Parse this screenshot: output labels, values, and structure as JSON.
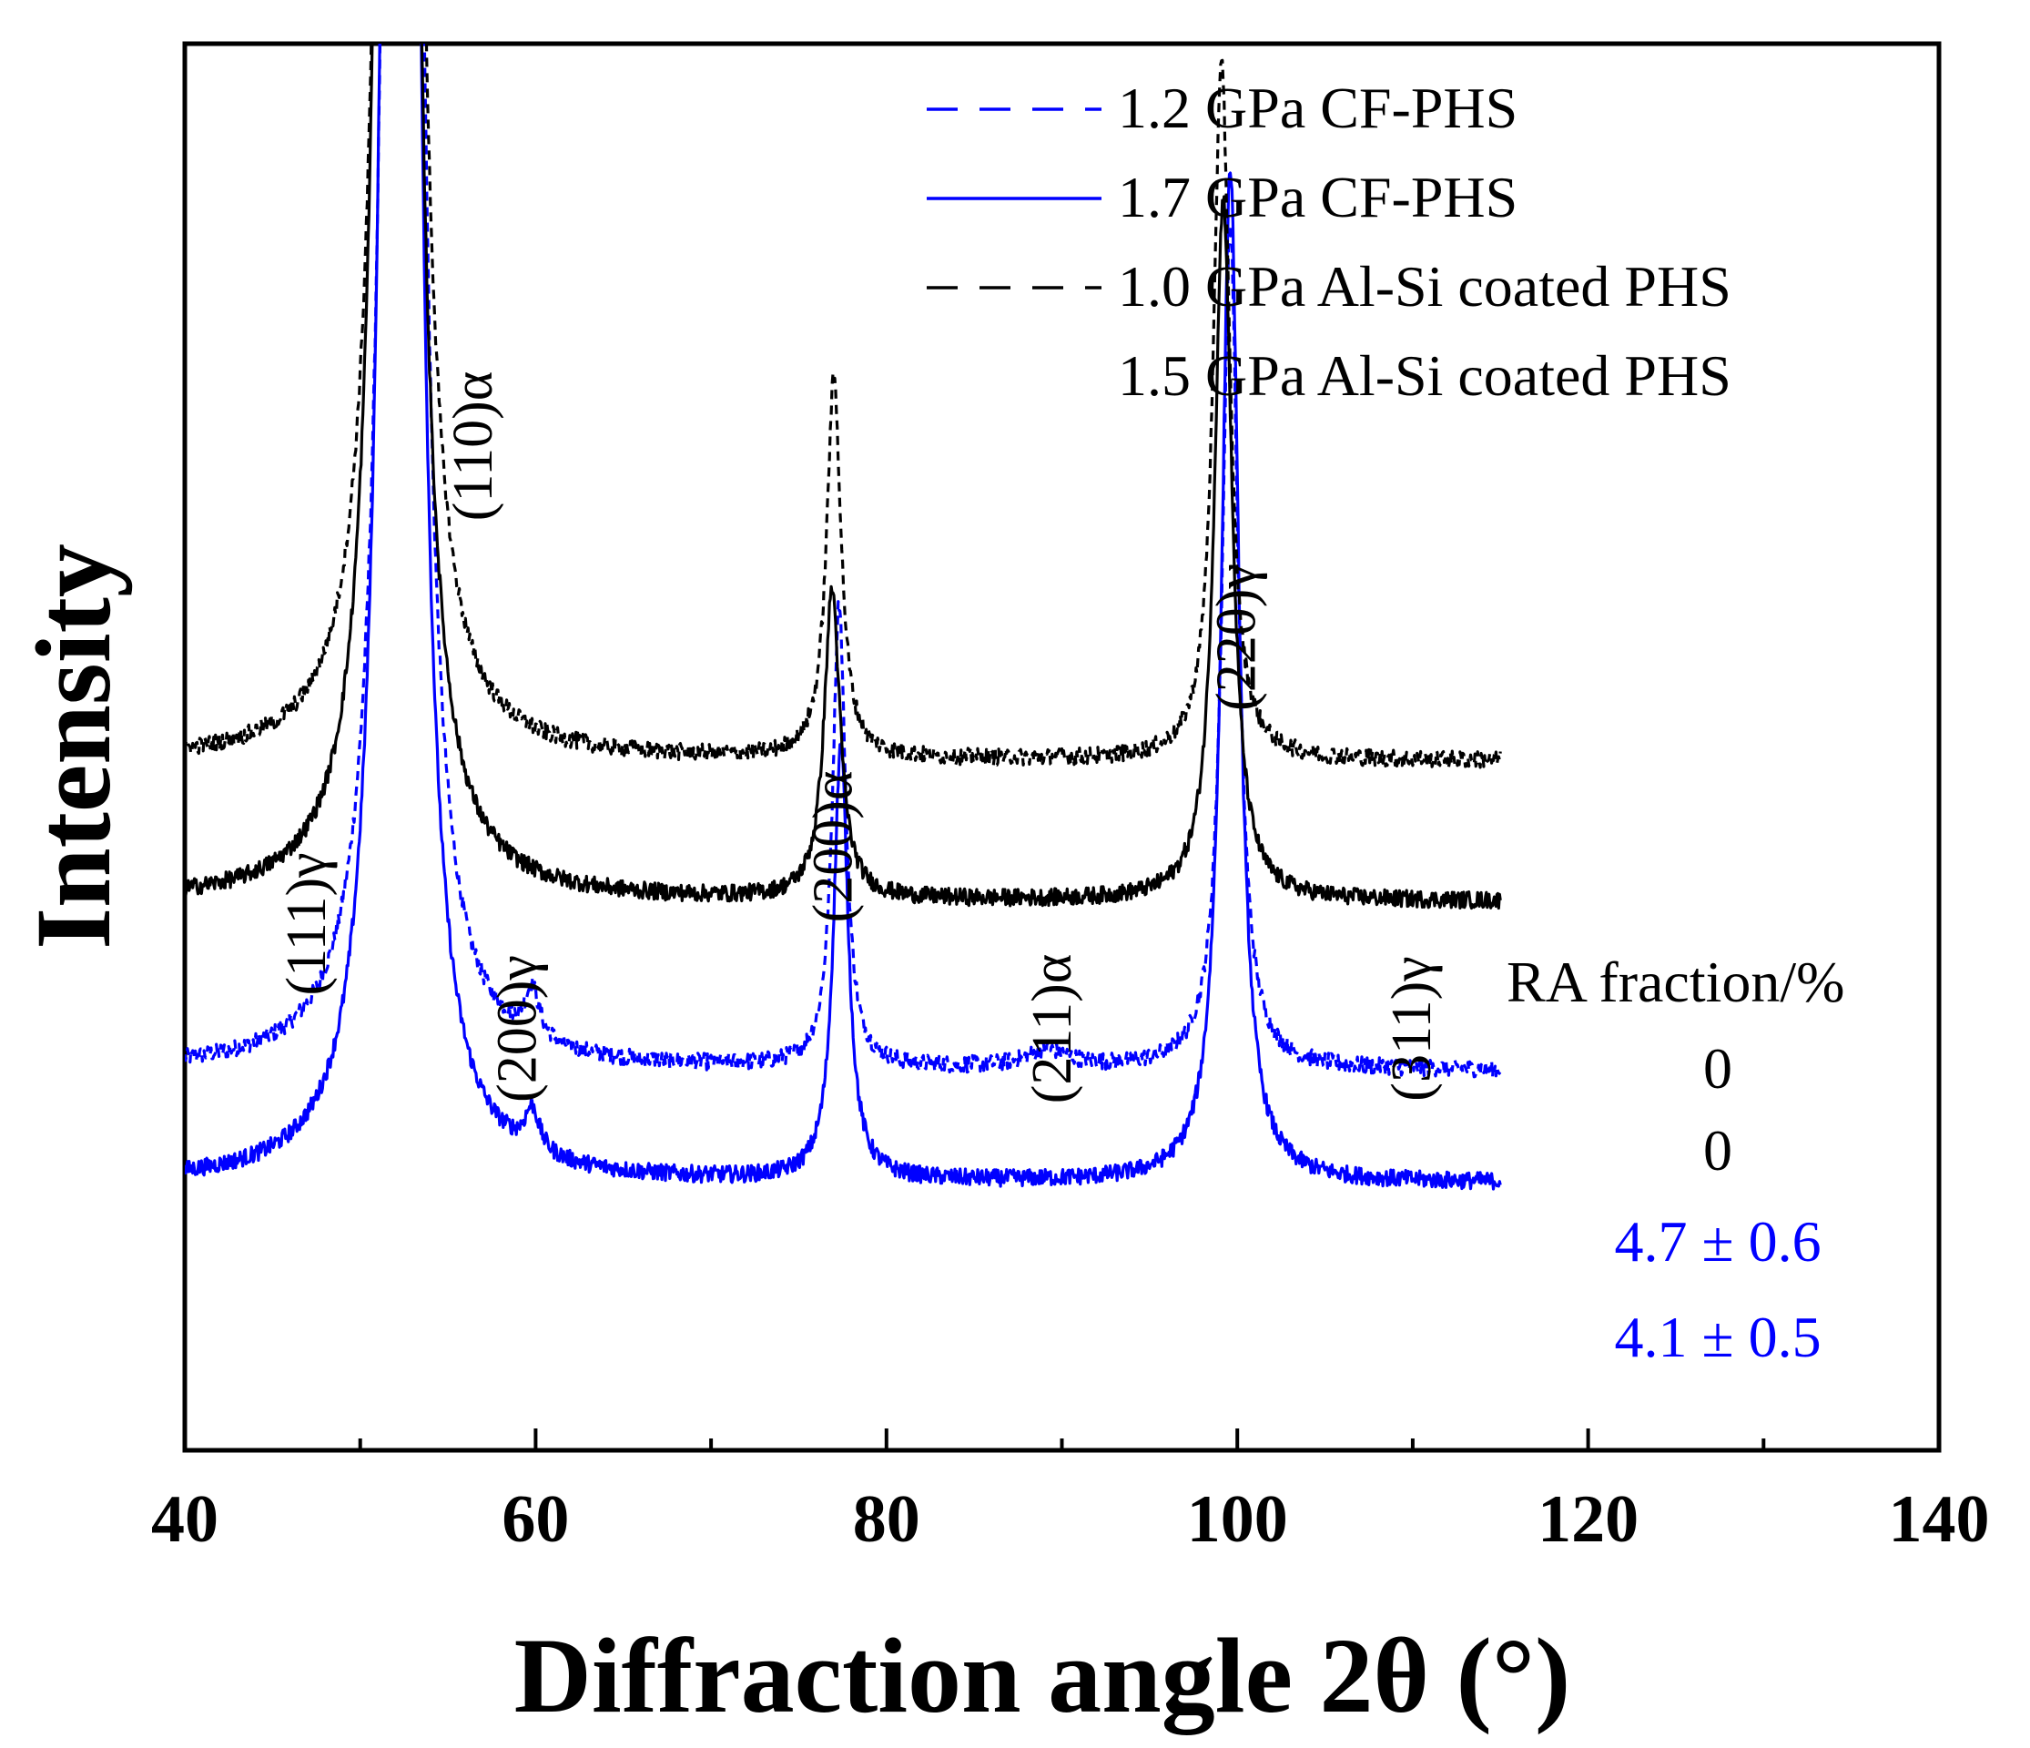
{
  "chart_data": {
    "type": "line",
    "title": "",
    "xlabel": "Diffraction angle 2θ (°)",
    "ylabel": "Intensity",
    "xlim": [
      40,
      140
    ],
    "x_ticks": [
      40,
      60,
      80,
      100,
      120,
      140
    ],
    "x_tick_labels": [
      "40",
      "60",
      "80",
      "100",
      "120",
      "140"
    ],
    "x_minor_ticks": [
      50,
      70,
      90,
      110,
      130
    ],
    "y_ticks_visible": false,
    "grid": false,
    "legend_position": "top-right",
    "series": [
      {
        "name": "1.2 GPa CF-PHS",
        "color": "#0000ff",
        "style": "dashed",
        "x_range": [
          40,
          115
        ],
        "baseline": 0.27,
        "ra_fraction": "4.7 ± 0.6",
        "peaks": [
          {
            "x": 52.4,
            "height": 4.0,
            "width": 0.6
          },
          {
            "x": 59.8,
            "height": 0.035,
            "width": 0.5
          },
          {
            "x": 77.3,
            "height": 0.33,
            "width": 0.45
          },
          {
            "x": 89.2,
            "height": 0.012,
            "width": 1.5
          },
          {
            "x": 99.6,
            "height": 0.6,
            "width": 0.55
          }
        ]
      },
      {
        "name": "1.7 GPa CF-PHS",
        "color": "#0000ff",
        "style": "solid",
        "x_range": [
          40,
          115
        ],
        "baseline": 0.19,
        "ra_fraction": "4.1 ± 0.5",
        "peaks": [
          {
            "x": 52.3,
            "height": 4.0,
            "width": 0.6
          },
          {
            "x": 59.8,
            "height": 0.03,
            "width": 0.5
          },
          {
            "x": 77.4,
            "height": 0.31,
            "width": 0.5
          },
          {
            "x": 99.6,
            "height": 0.72,
            "width": 0.6
          }
        ]
      },
      {
        "name": "1.0 GPa Al-Si coated PHS",
        "color": "#000000",
        "style": "dashed",
        "x_range": [
          40,
          115
        ],
        "baseline": 0.49,
        "ra_fraction": "0",
        "peaks": [
          {
            "x": 52.2,
            "height": 4.0,
            "width": 0.6
          },
          {
            "x": 77.0,
            "height": 0.27,
            "width": 0.5
          },
          {
            "x": 99.1,
            "height": 0.5,
            "width": 0.55
          }
        ]
      },
      {
        "name": "1.5 GPa Al-Si coated PHS",
        "color": "#000000",
        "style": "solid",
        "x_range": [
          40,
          115
        ],
        "baseline": 0.39,
        "ra_fraction": "0",
        "peaks": [
          {
            "x": 52.1,
            "height": 4.0,
            "width": 0.6
          },
          {
            "x": 76.9,
            "height": 0.22,
            "width": 0.55
          },
          {
            "x": 99.2,
            "height": 0.5,
            "width": 0.6
          }
        ]
      }
    ],
    "annotations": [
      {
        "text": "(111)γ",
        "x": 48.0
      },
      {
        "text": "(110)α",
        "x": 57.5
      },
      {
        "text": "(200)γ",
        "x": 60.0
      },
      {
        "text": "(200)α",
        "x": 78.0
      },
      {
        "text": "(211)α",
        "x": 90.5
      },
      {
        "text": "(220)γ",
        "x": 101.0
      },
      {
        "text": "(311)γ",
        "x": 111.0
      }
    ],
    "ra_header": "RA fraction/%"
  }
}
